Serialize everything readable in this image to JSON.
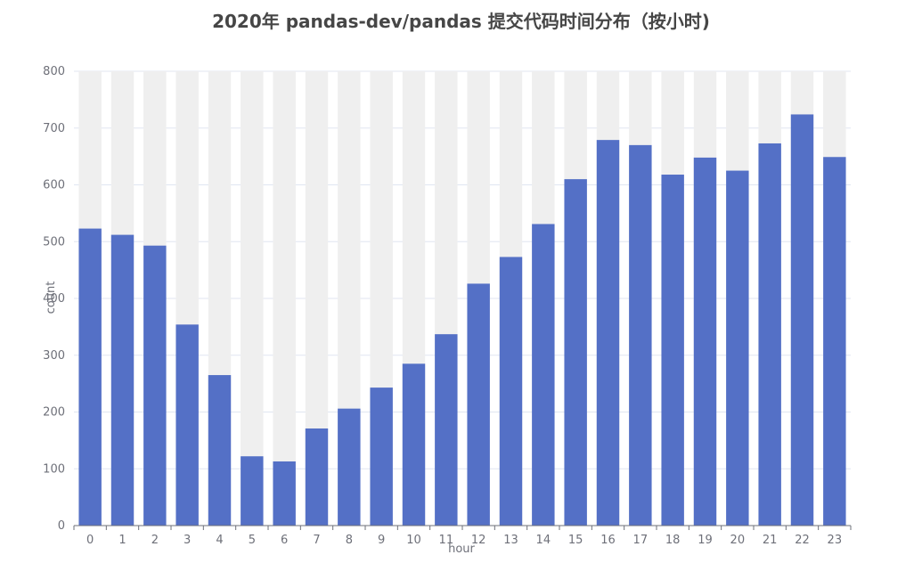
{
  "chart_data": {
    "type": "bar",
    "title": "2020年 pandas-dev/pandas 提交代码时间分布（按小时)",
    "xlabel": "hour",
    "ylabel": "count",
    "categories": [
      "0",
      "1",
      "2",
      "3",
      "4",
      "5",
      "6",
      "7",
      "8",
      "9",
      "10",
      "11",
      "12",
      "13",
      "14",
      "15",
      "16",
      "17",
      "18",
      "19",
      "20",
      "21",
      "22",
      "23"
    ],
    "series": [
      {
        "values": [
          523,
          512,
          493,
          354,
          265,
          122,
          113,
          171,
          206,
          243,
          285,
          337,
          426,
          473,
          531,
          610,
          679,
          670,
          618,
          648,
          625,
          673,
          724,
          649
        ]
      }
    ],
    "ylim": [
      0,
      800
    ],
    "yticks": [
      0,
      100,
      200,
      300,
      400,
      500,
      600,
      700,
      800
    ],
    "grid": true,
    "background_bars": true,
    "colors": {
      "bar": "#5470c6",
      "background_bar": "#efefef",
      "grid": "#e0e6f1",
      "axis": "#6e7079"
    }
  }
}
